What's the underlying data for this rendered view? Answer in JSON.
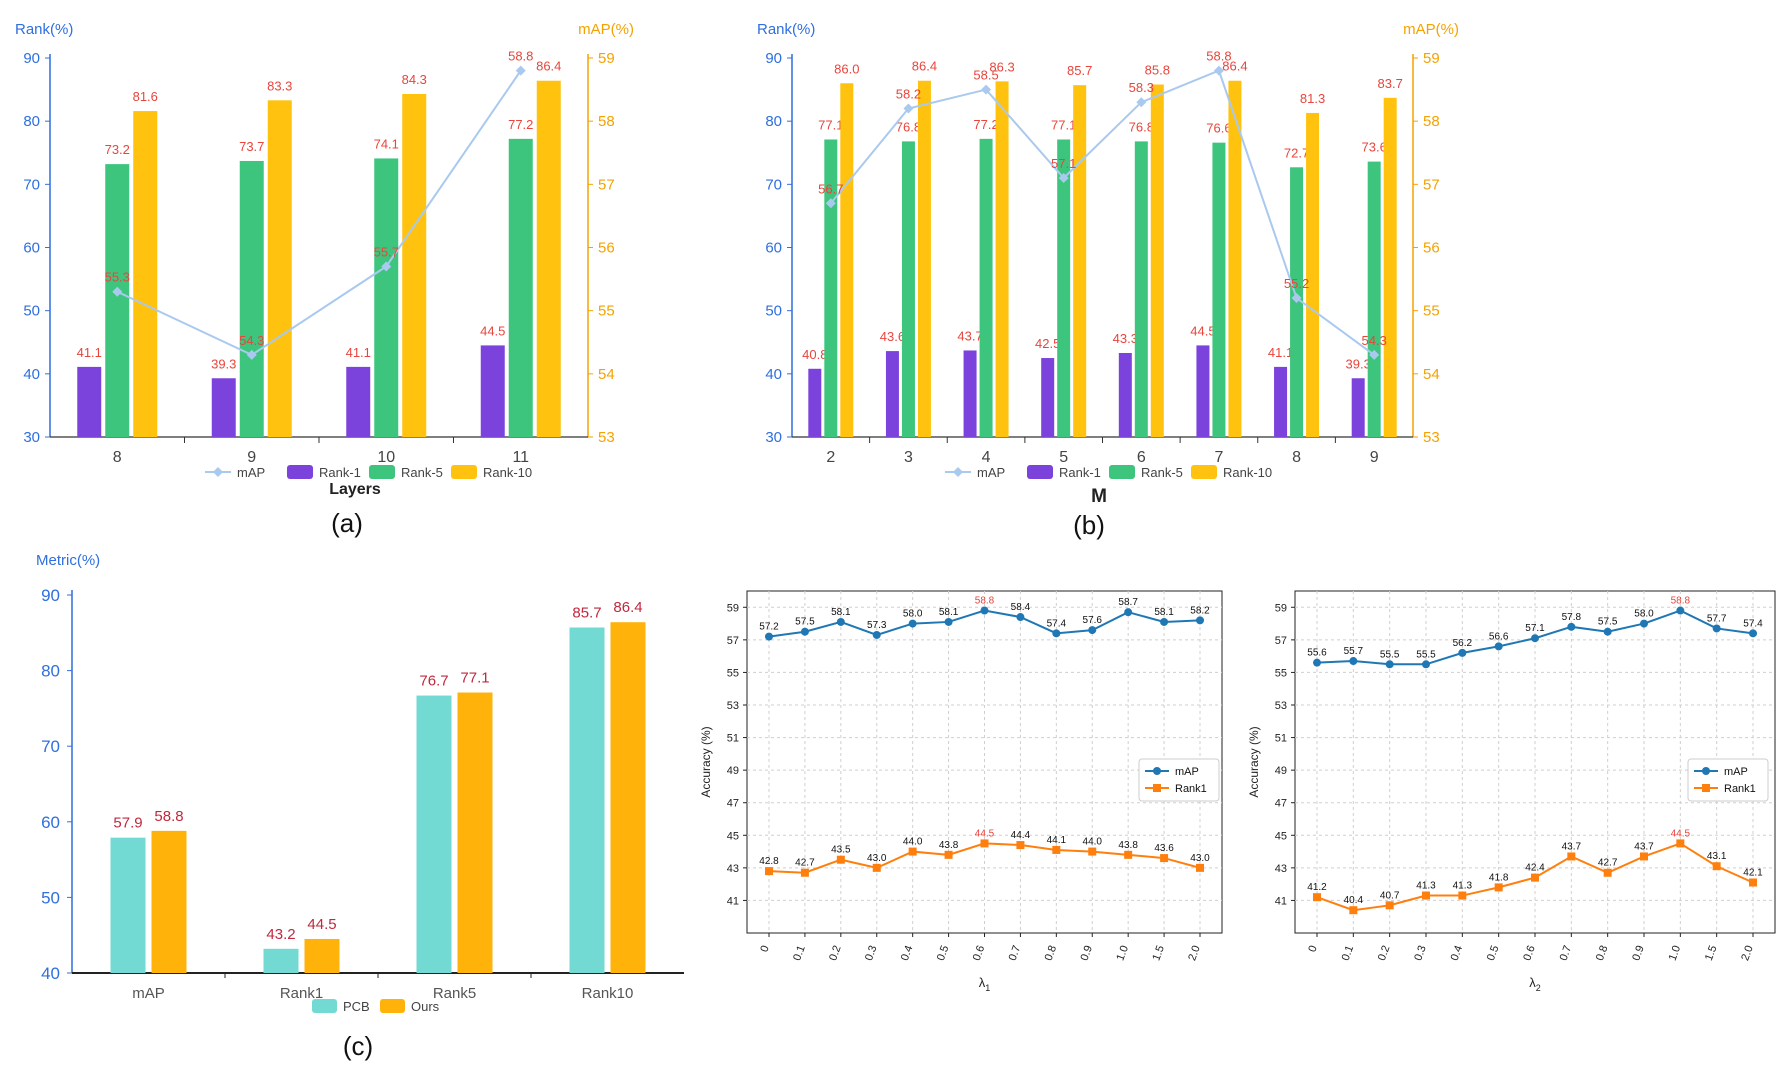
{
  "colors": {
    "rank1": "#7b43db",
    "rank5": "#3ec57d",
    "rank10": "#ffc20e",
    "map_line": "#a9c9ef",
    "map_marker": "#a9c9ef",
    "value_label": "#e8453c",
    "left_axis": "#2f6fde",
    "right_axis": "#f5a200",
    "pcb": "#72d9d3",
    "ours": "#ffb20a",
    "c_label": "#c0283e",
    "line_map": "#1f77b4",
    "line_rank1": "#ff7f0e"
  },
  "captions": {
    "a": "(a)",
    "b": "(b)",
    "c": "(c)"
  },
  "chart_data": [
    {
      "id": "a",
      "type": "bar",
      "caption": "(a)",
      "xlabel": "Layers",
      "ylabel_left": "Rank(%)",
      "ylabel_right": "mAP(%)",
      "categories": [
        "8",
        "9",
        "10",
        "11"
      ],
      "ylim": [
        30,
        90
      ],
      "yticks": [
        "30",
        "40",
        "50",
        "60",
        "70",
        "80",
        "90"
      ],
      "y2lim": [
        53,
        59
      ],
      "y2ticks": [
        "53",
        "54",
        "55",
        "56",
        "57",
        "58",
        "59"
      ],
      "series": [
        {
          "name": "Rank-1",
          "axis": "left",
          "values": [
            41.1,
            39.3,
            41.1,
            44.5
          ],
          "labels": [
            "41.1",
            "39.3",
            "41.1",
            "44.5"
          ]
        },
        {
          "name": "Rank-5",
          "axis": "left",
          "values": [
            73.2,
            73.7,
            74.1,
            77.2
          ],
          "labels": [
            "73.2",
            "73.7",
            "74.1",
            "77.2"
          ]
        },
        {
          "name": "Rank-10",
          "axis": "left",
          "values": [
            81.6,
            83.3,
            84.3,
            86.4
          ],
          "labels": [
            "81.6",
            "83.3",
            "84.3",
            "86.4"
          ]
        }
      ],
      "line": {
        "name": "mAP",
        "axis": "right",
        "values": [
          55.3,
          54.3,
          55.7,
          58.8
        ],
        "labels": [
          "55.3",
          "54.3",
          "55.7",
          "58.8"
        ]
      },
      "legend": [
        "mAP",
        "Rank-1",
        "Rank-5",
        "Rank-10"
      ]
    },
    {
      "id": "b",
      "type": "bar",
      "caption": "(b)",
      "xlabel": "M",
      "ylabel_left": "Rank(%)",
      "ylabel_right": "mAP(%)",
      "categories": [
        "2",
        "3",
        "4",
        "5",
        "6",
        "7",
        "8",
        "9"
      ],
      "ylim": [
        30,
        90
      ],
      "yticks": [
        "30",
        "40",
        "50",
        "60",
        "70",
        "80",
        "90"
      ],
      "y2lim": [
        53,
        59
      ],
      "y2ticks": [
        "53",
        "54",
        "55",
        "56",
        "57",
        "58",
        "59"
      ],
      "series": [
        {
          "name": "Rank-1",
          "axis": "left",
          "values": [
            40.8,
            43.6,
            43.7,
            42.5,
            43.3,
            44.5,
            41.1,
            39.3
          ],
          "labels": [
            "40.8",
            "43.6",
            "43.7",
            "42.5",
            "43.3",
            "44.5",
            "41.1",
            "39.3"
          ]
        },
        {
          "name": "Rank-5",
          "axis": "left",
          "values": [
            77.1,
            76.8,
            77.2,
            77.1,
            76.8,
            76.6,
            72.7,
            73.6
          ],
          "labels": [
            "77.1",
            "76.8",
            "77.2",
            "77.1",
            "76.8",
            "76.6",
            "72.7",
            "73.6"
          ]
        },
        {
          "name": "Rank-10",
          "axis": "left",
          "values": [
            86.0,
            86.4,
            86.3,
            85.7,
            85.8,
            86.4,
            81.3,
            83.7
          ],
          "labels": [
            "86.0",
            "86.4",
            "86.3",
            "85.7",
            "85.8",
            "86.4",
            "81.3",
            "83.7"
          ]
        }
      ],
      "line": {
        "name": "mAP",
        "axis": "right",
        "values": [
          56.7,
          58.2,
          58.5,
          57.1,
          58.3,
          58.8,
          55.2,
          54.3
        ],
        "labels": [
          "56.7",
          "58.2",
          "58.5",
          "57.1",
          "58.3",
          "58.8",
          "55.2",
          "54.3"
        ]
      },
      "legend": [
        "mAP",
        "Rank-1",
        "Rank-5",
        "Rank-10"
      ]
    },
    {
      "id": "c",
      "type": "bar",
      "caption": "(c)",
      "ylabel": "Metric(%)",
      "categories": [
        "mAP",
        "Rank1",
        "Rank5",
        "Rank10"
      ],
      "ylim": [
        40,
        90
      ],
      "yticks": [
        "40",
        "50",
        "60",
        "70",
        "80",
        "90"
      ],
      "series": [
        {
          "name": "PCB",
          "values": [
            57.9,
            43.2,
            76.7,
            85.7
          ],
          "labels": [
            "57.9",
            "43.2",
            "76.7",
            "85.7"
          ]
        },
        {
          "name": "Ours",
          "values": [
            58.8,
            44.5,
            77.1,
            86.4
          ],
          "labels": [
            "58.8",
            "44.5",
            "77.1",
            "86.4"
          ]
        }
      ],
      "legend": [
        "PCB",
        "Ours"
      ]
    },
    {
      "id": "d",
      "type": "line",
      "xlabel": "λ",
      "xlabel_sub": "1",
      "ylabel": "Accuracy (%)",
      "categories": [
        "0",
        "0.1",
        "0.2",
        "0.3",
        "0.4",
        "0.5",
        "0.6",
        "0.7",
        "0.8",
        "0.9",
        "1.0",
        "1.5",
        "2.0"
      ],
      "ylim": [
        39,
        60
      ],
      "yticks": [
        "41",
        "43",
        "45",
        "47",
        "49",
        "51",
        "53",
        "55",
        "57",
        "59"
      ],
      "series": [
        {
          "name": "mAP",
          "values": [
            57.2,
            57.5,
            58.1,
            57.3,
            58.0,
            58.1,
            58.8,
            58.4,
            57.4,
            57.6,
            58.7,
            58.1,
            58.2
          ],
          "labels": [
            "57.2",
            "57.5",
            "58.1",
            "57.3",
            "58.0",
            "58.1",
            "58.8",
            "58.4",
            "57.4",
            "57.6",
            "58.7",
            "58.1",
            "58.2"
          ],
          "highlight": 6
        },
        {
          "name": "Rank1",
          "values": [
            42.8,
            42.7,
            43.5,
            43.0,
            44.0,
            43.8,
            44.5,
            44.4,
            44.1,
            44.0,
            43.8,
            43.6,
            43.0
          ],
          "labels": [
            "42.8",
            "42.7",
            "43.5",
            "43.0",
            "44.0",
            "43.8",
            "44.5",
            "44.4",
            "44.1",
            "44.0",
            "43.8",
            "43.6",
            "43.0"
          ],
          "highlight": 6
        }
      ],
      "legend": [
        "mAP",
        "Rank1"
      ]
    },
    {
      "id": "e",
      "type": "line",
      "xlabel": "λ",
      "xlabel_sub": "2",
      "ylabel": "Accuracy (%)",
      "categories": [
        "0",
        "0.1",
        "0.2",
        "0.3",
        "0.4",
        "0.5",
        "0.6",
        "0.7",
        "0.8",
        "0.9",
        "1.0",
        "1.5",
        "2.0"
      ],
      "ylim": [
        39,
        60
      ],
      "yticks": [
        "41",
        "43",
        "45",
        "47",
        "49",
        "51",
        "53",
        "55",
        "57",
        "59"
      ],
      "series": [
        {
          "name": "mAP",
          "values": [
            55.6,
            55.7,
            55.5,
            55.5,
            56.2,
            56.6,
            57.1,
            57.8,
            57.5,
            58.0,
            58.8,
            57.7,
            57.4
          ],
          "labels": [
            "55.6",
            "55.7",
            "55.5",
            "55.5",
            "56.2",
            "56.6",
            "57.1",
            "57.8",
            "57.5",
            "58.0",
            "58.8",
            "57.7",
            "57.4"
          ],
          "highlight": 10
        },
        {
          "name": "Rank1",
          "values": [
            41.2,
            40.4,
            40.7,
            41.3,
            41.3,
            41.8,
            42.4,
            43.7,
            42.7,
            43.7,
            44.5,
            43.1,
            42.1
          ],
          "labels": [
            "41.2",
            "40.4",
            "40.7",
            "41.3",
            "41.3",
            "41.8",
            "42.4",
            "43.7",
            "42.7",
            "43.7",
            "44.5",
            "43.1",
            "42.1"
          ],
          "highlight": 10
        }
      ],
      "legend": [
        "mAP",
        "Rank1"
      ]
    }
  ]
}
